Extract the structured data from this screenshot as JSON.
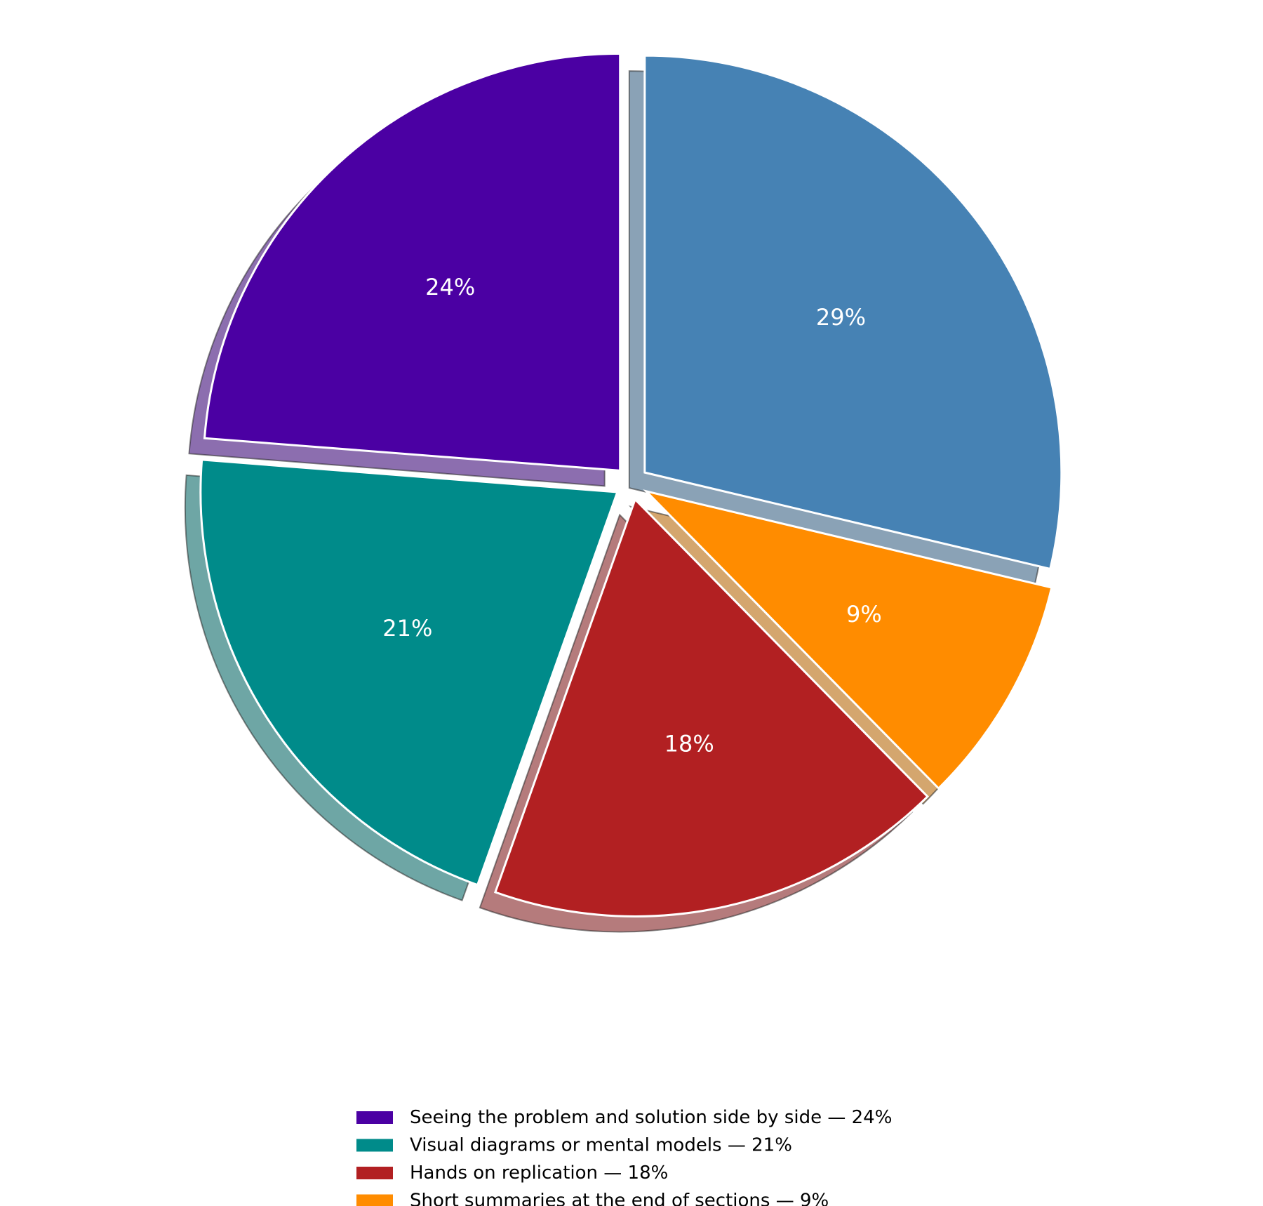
{
  "chart_data": {
    "type": "pie",
    "start_angle_deg": 90,
    "direction": "counterclockwise",
    "slices": [
      {
        "legend": "Seeing the problem and solution side by side — 24%",
        "value": 24,
        "label": "24%",
        "color": "#4b00a3"
      },
      {
        "legend": "Visual diagrams or mental models — 21%",
        "value": 21,
        "label": "21%",
        "color": "#008b8a"
      },
      {
        "legend": "Hands on replication — 18%",
        "value": 18,
        "label": "18%",
        "color": "#b22022"
      },
      {
        "legend": "Short summaries at the end of sections — 9%",
        "value": 9,
        "label": "9%",
        "color": "#ff8c00"
      },
      {
        "legend": "",
        "value": 29,
        "label": "29%",
        "color": "#4682b4"
      }
    ],
    "shadow": true,
    "legend_position": "bottom-center",
    "wedge_edge_color": "#ffffff"
  }
}
